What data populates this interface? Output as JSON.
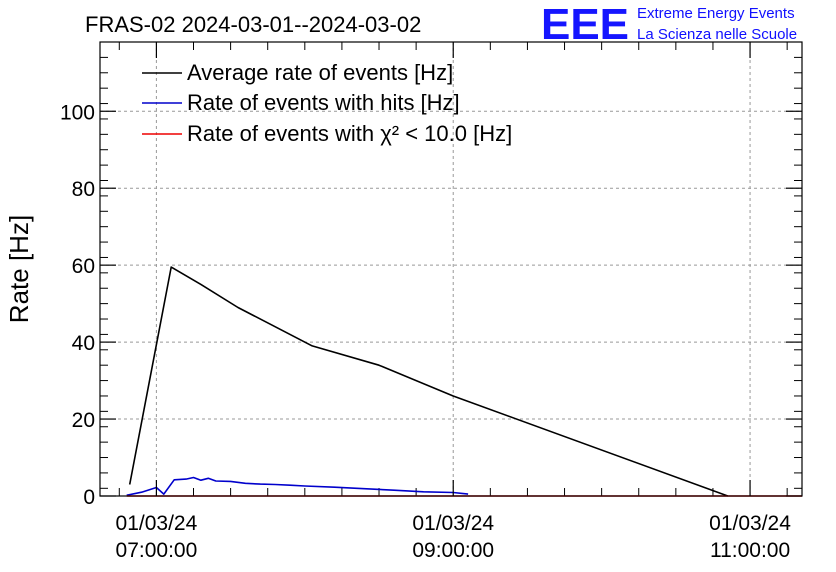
{
  "header": {
    "title": "FRAS-02 2024-03-01--2024-03-02",
    "logo_mark": "EEE",
    "logo_line1": "Extreme Energy Events",
    "logo_line2": "La Scienza nelle Scuole"
  },
  "chart_data": {
    "type": "line",
    "title": "FRAS-02 2024-03-01--2024-03-02",
    "xlabel": "",
    "ylabel": "Rate [Hz]",
    "ylim": [
      0,
      118
    ],
    "xlim": [
      6.62,
      11.35
    ],
    "grid": true,
    "legend_position": "top-left",
    "x_unit": "hours of day, 2024-03-01",
    "yticks": [
      0,
      20,
      40,
      60,
      80,
      100
    ],
    "xticks": [
      {
        "x": 7,
        "line1": "01/03/24",
        "line2": "07:00:00"
      },
      {
        "x": 9,
        "line1": "01/03/24",
        "line2": "09:00:00"
      },
      {
        "x": 11,
        "line1": "01/03/24",
        "line2": "11:00:00"
      }
    ],
    "series": [
      {
        "name": "Average rate of events [Hz]",
        "color": "#000000",
        "x": [
          6.82,
          7.1,
          7.3,
          7.55,
          8.05,
          8.5,
          9.0,
          10.85
        ],
        "y": [
          3.0,
          59.5,
          55.0,
          49.0,
          39.0,
          34.0,
          26.0,
          0.0
        ]
      },
      {
        "name": "Rate of events with hits [Hz]",
        "color": "#0000cc",
        "x": [
          6.8,
          6.9,
          7.0,
          7.05,
          7.12,
          7.2,
          7.25,
          7.3,
          7.35,
          7.4,
          7.5,
          7.6,
          7.7,
          7.8,
          7.9,
          8.0,
          8.2,
          8.4,
          8.6,
          8.8,
          9.0,
          9.1
        ],
        "y": [
          0.2,
          1.0,
          2.2,
          0.5,
          4.2,
          4.4,
          4.8,
          4.1,
          4.6,
          3.9,
          3.8,
          3.3,
          3.1,
          3.0,
          2.8,
          2.6,
          2.3,
          1.9,
          1.5,
          1.1,
          0.9,
          0.5
        ]
      },
      {
        "name": "Rate of events with χ² < 10.0 [Hz]",
        "color": "#ee0000",
        "x": [
          6.8,
          11.35
        ],
        "y": [
          0.0,
          0.0
        ]
      }
    ]
  }
}
